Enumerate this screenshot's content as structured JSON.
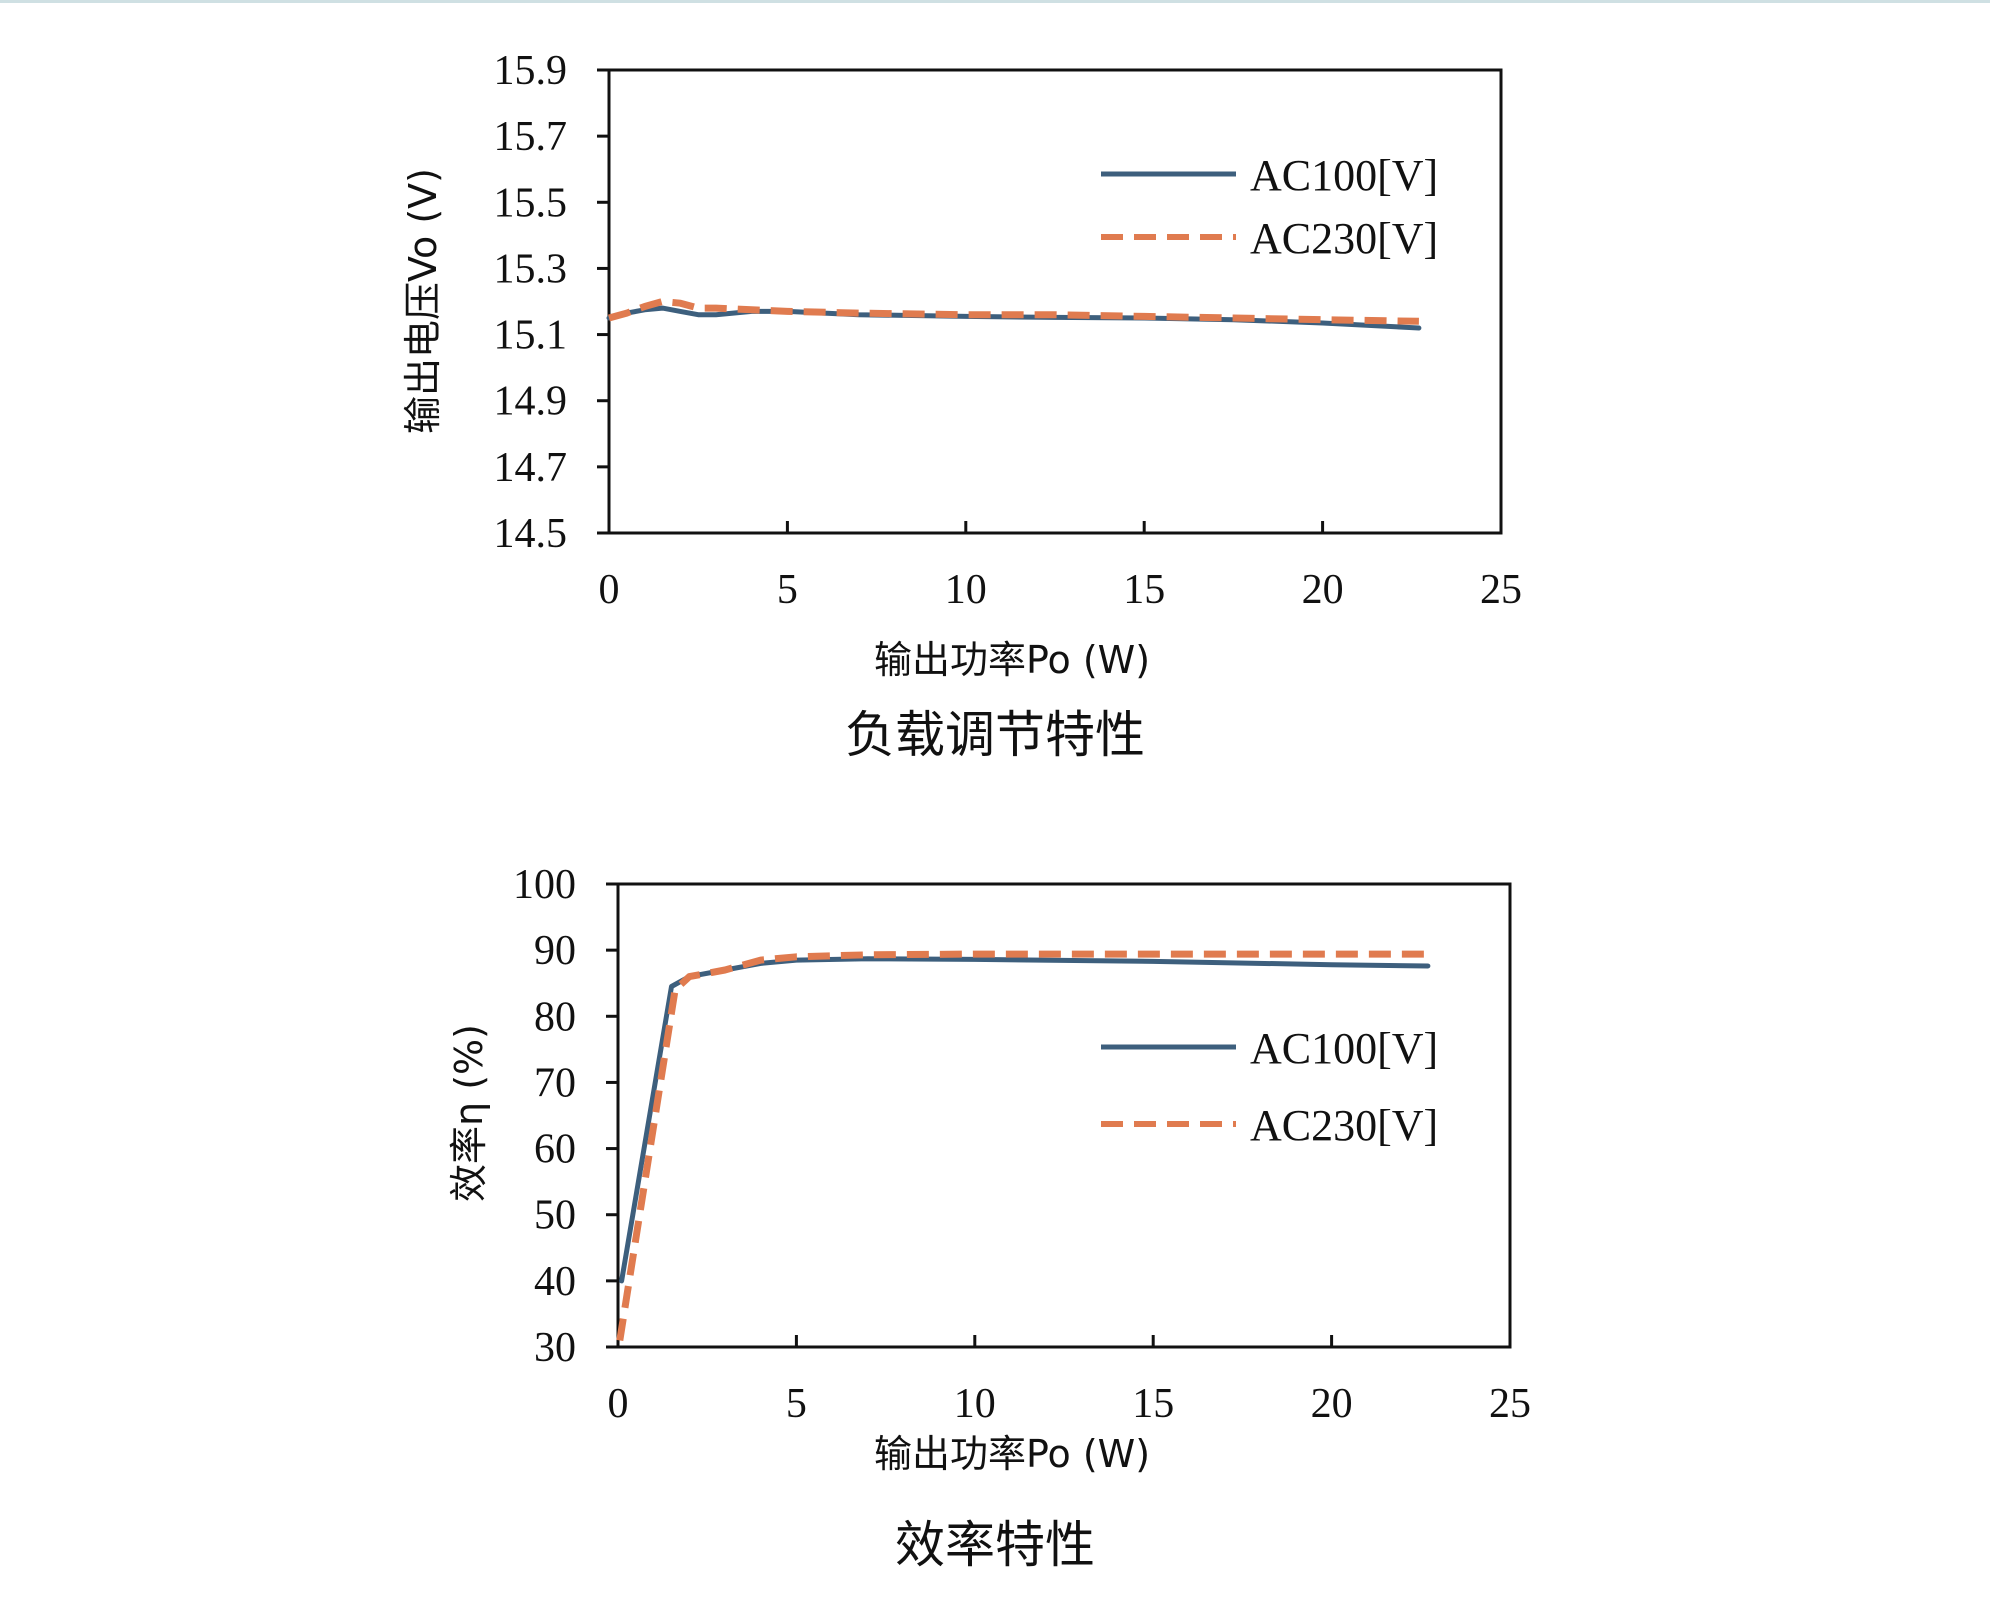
{
  "chart_data": [
    {
      "type": "line",
      "title": "负载调节特性",
      "xlabel": "输出功率Po (W)",
      "ylabel": "输出电压Vo (V)",
      "xlim": [
        0,
        25
      ],
      "ylim": [
        14.5,
        15.9
      ],
      "xticks": [
        "0",
        "5",
        "10",
        "15",
        "20",
        "25"
      ],
      "yticks": [
        "15.9",
        "15.7",
        "15.5",
        "15.3",
        "15.1",
        "14.9",
        "14.7",
        "14.5"
      ],
      "grid": false,
      "legend_position": "top-right",
      "series": [
        {
          "name": "AC100[V]",
          "color": "#3d5f7d",
          "style": "solid",
          "x": [
            0,
            0.5,
            1.0,
            1.5,
            2.0,
            2.5,
            3.0,
            4.0,
            5.0,
            7.0,
            10.0,
            12.5,
            15.0,
            17.5,
            20.0,
            22.7
          ],
          "y": [
            15.15,
            15.165,
            15.175,
            15.18,
            15.17,
            15.16,
            15.16,
            15.17,
            15.17,
            15.16,
            15.155,
            15.152,
            15.15,
            15.145,
            15.135,
            15.12
          ]
        },
        {
          "name": "AC230[V]",
          "color": "#e07b4f",
          "style": "dashed",
          "x": [
            0,
            0.5,
            1.0,
            1.5,
            2.0,
            2.5,
            3.0,
            4.0,
            5.0,
            7.0,
            10.0,
            12.5,
            15.0,
            17.5,
            20.0,
            22.7
          ],
          "y": [
            15.15,
            15.165,
            15.185,
            15.2,
            15.195,
            15.18,
            15.18,
            15.175,
            15.17,
            15.165,
            15.16,
            15.16,
            15.155,
            15.15,
            15.145,
            15.14
          ]
        }
      ]
    },
    {
      "type": "line",
      "title": "效率特性",
      "xlabel": "输出功率Po (W)",
      "ylabel": "效率η (%)",
      "xlim": [
        0,
        25
      ],
      "ylim": [
        30,
        100
      ],
      "xticks": [
        "0",
        "5",
        "10",
        "15",
        "20",
        "25"
      ],
      "yticks": [
        "100",
        "90",
        "80",
        "70",
        "60",
        "50",
        "40",
        "30"
      ],
      "grid": false,
      "legend_position": "right",
      "series": [
        {
          "name": "AC100[V]",
          "color": "#3d5f7d",
          "style": "solid",
          "x": [
            0.1,
            1.5,
            2.0,
            3.0,
            4.0,
            5.0,
            7.0,
            10.0,
            15.0,
            20.0,
            22.7
          ],
          "y": [
            40,
            84.5,
            86,
            87,
            88,
            88.5,
            88.7,
            88.6,
            88.3,
            87.8,
            87.6
          ]
        },
        {
          "name": "AC230[V]",
          "color": "#e07b4f",
          "style": "dashed",
          "x": [
            0.05,
            1.6,
            2.0,
            3.0,
            4.0,
            5.0,
            7.0,
            10.0,
            15.0,
            20.0,
            22.7
          ],
          "y": [
            31,
            84,
            86,
            87,
            88.5,
            89,
            89.3,
            89.4,
            89.4,
            89.4,
            89.4
          ]
        }
      ]
    }
  ]
}
